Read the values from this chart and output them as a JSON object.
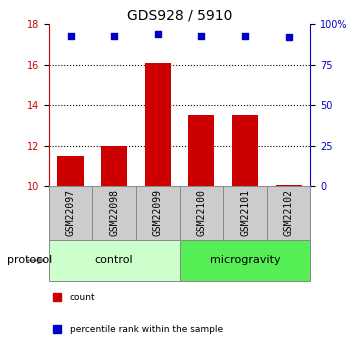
{
  "title": "GDS928 / 5910",
  "categories": [
    "GSM22097",
    "GSM22098",
    "GSM22099",
    "GSM22100",
    "GSM22101",
    "GSM22102"
  ],
  "bar_values": [
    11.5,
    12.0,
    16.1,
    13.5,
    13.5,
    10.05
  ],
  "percentile_values": [
    93,
    93,
    94,
    93,
    93,
    92
  ],
  "ylim_left": [
    10,
    18
  ],
  "ylim_right": [
    0,
    100
  ],
  "yticks_left": [
    10,
    12,
    14,
    16,
    18
  ],
  "yticks_right": [
    0,
    25,
    50,
    75,
    100
  ],
  "ytick_labels_right": [
    "0",
    "25",
    "50",
    "75",
    "100%"
  ],
  "bar_color": "#cc0000",
  "dot_color": "#0000cc",
  "bar_width": 0.6,
  "protocol_groups": [
    {
      "label": "control",
      "indices": [
        0,
        1,
        2
      ],
      "color": "#ccffcc"
    },
    {
      "label": "microgravity",
      "indices": [
        3,
        4,
        5
      ],
      "color": "#55ee55"
    }
  ],
  "legend_items": [
    {
      "label": "count",
      "color": "#cc0000"
    },
    {
      "label": "percentile rank within the sample",
      "color": "#0000cc"
    }
  ],
  "protocol_label": "protocol",
  "left_axis_color": "#cc0000",
  "right_axis_color": "#0000cc",
  "title_fontsize": 10,
  "tick_fontsize": 7,
  "label_fontsize": 8,
  "xtick_box_color": "#cccccc",
  "xtick_box_edge": "#888888",
  "grid_ticks": [
    12,
    14,
    16
  ]
}
